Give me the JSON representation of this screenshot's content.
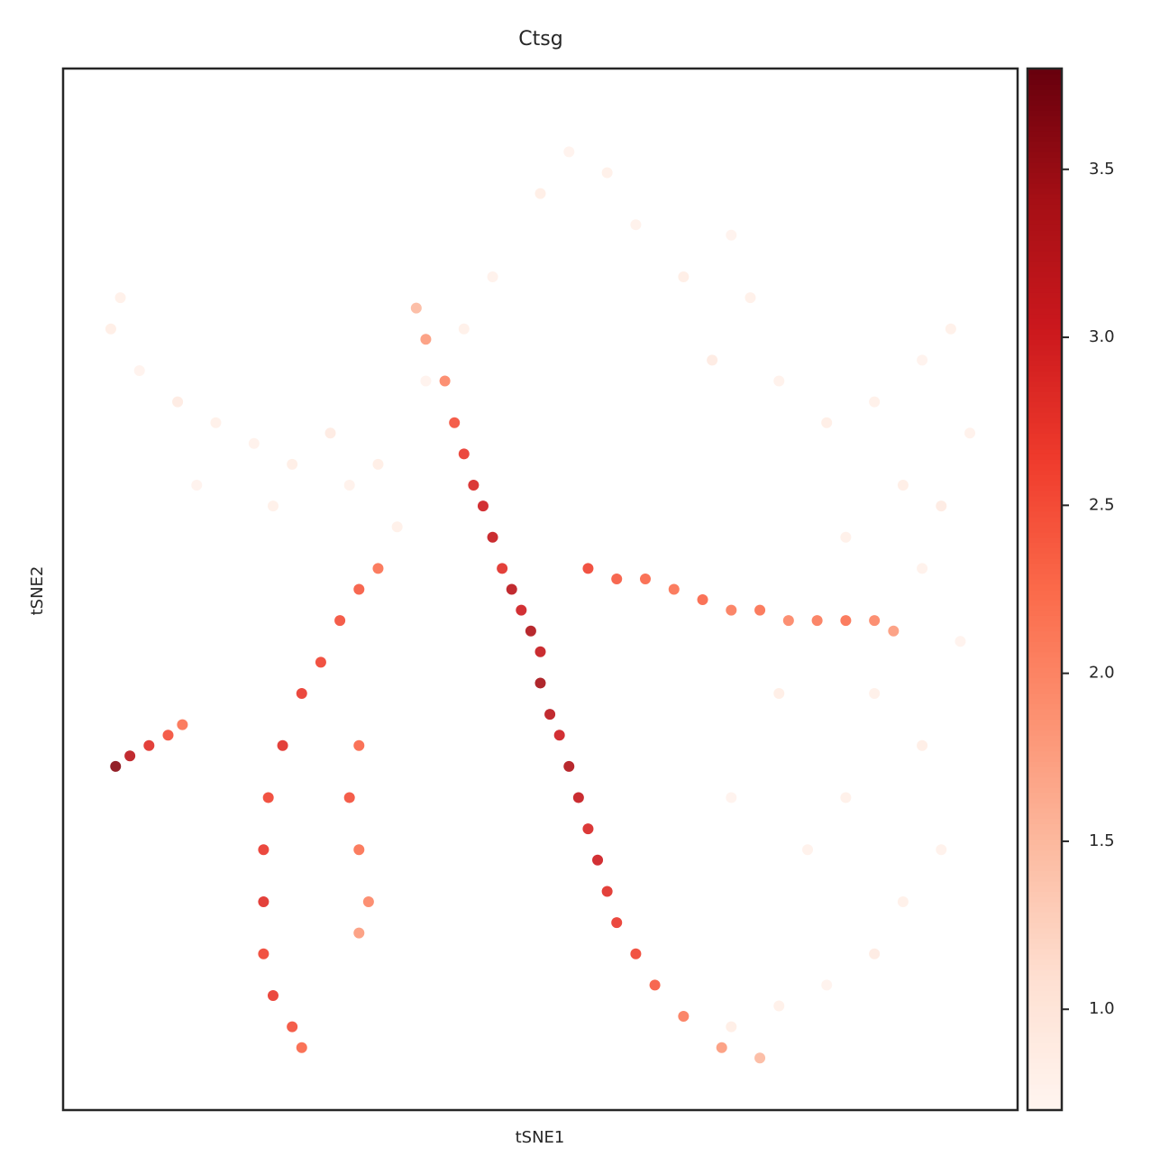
{
  "chart_data": {
    "type": "scatter",
    "title": "Ctsg",
    "xlabel": "tSNE1",
    "ylabel": "tSNE2",
    "xlim": [
      0,
      100
    ],
    "ylim": [
      0,
      100
    ],
    "x": [
      6,
      5,
      8,
      12,
      16,
      20,
      24,
      14,
      22,
      28,
      30,
      33,
      35,
      38,
      42,
      45,
      50,
      53,
      57,
      60,
      65,
      70,
      72,
      68,
      75,
      80,
      85,
      90,
      93,
      95,
      92,
      88,
      82,
      90,
      94,
      85,
      90,
      92,
      88,
      85,
      80,
      75,
      70,
      78,
      82,
      70,
      75,
      37,
      38,
      40,
      41,
      42,
      43,
      44,
      45,
      46,
      47,
      48,
      49,
      50,
      50,
      51,
      52,
      53,
      54,
      55,
      56,
      57,
      58,
      60,
      62,
      65,
      69,
      73,
      55,
      58,
      61,
      64,
      67,
      70,
      73,
      76,
      79,
      82,
      85,
      87,
      33,
      31,
      29,
      27,
      25,
      23,
      21.5,
      21,
      21,
      21,
      22,
      24,
      25,
      31,
      30,
      31,
      32,
      31,
      5.5,
      7,
      9,
      11,
      12.5
    ],
    "y": [
      78,
      75,
      71,
      68,
      66,
      64,
      62,
      60,
      58,
      65,
      60,
      62,
      56,
      70,
      75,
      80,
      88,
      92,
      90,
      85,
      80,
      84,
      78,
      72,
      70,
      66,
      68,
      72,
      75,
      65,
      58,
      60,
      55,
      52,
      45,
      40,
      35,
      25,
      20,
      15,
      12,
      10,
      8,
      25,
      30,
      30,
      40,
      77,
      74,
      70,
      66,
      63,
      60,
      58,
      55,
      52,
      50,
      48,
      46,
      44,
      41,
      38,
      36,
      33,
      30,
      27,
      24,
      21,
      18,
      15,
      12,
      9,
      6,
      5,
      52,
      51,
      51,
      50,
      49,
      48,
      48,
      47,
      47,
      47,
      47,
      46,
      52,
      50,
      47,
      43,
      40,
      35,
      30,
      25,
      20,
      15,
      11,
      8,
      6,
      35,
      30,
      25,
      20,
      17,
      33,
      34,
      35,
      36,
      37
    ],
    "values": [
      0.8,
      0.85,
      0.75,
      0.9,
      0.8,
      0.78,
      0.85,
      0.75,
      0.8,
      0.9,
      0.78,
      0.85,
      0.8,
      0.75,
      0.8,
      0.78,
      0.85,
      0.75,
      0.8,
      0.78,
      0.85,
      0.75,
      0.8,
      0.9,
      0.78,
      0.85,
      0.8,
      0.75,
      0.8,
      0.78,
      0.9,
      0.85,
      0.8,
      0.78,
      0.75,
      0.8,
      0.85,
      0.78,
      0.8,
      0.9,
      0.75,
      0.8,
      0.85,
      0.78,
      0.8,
      0.75,
      0.85,
      1.5,
      1.8,
      2.0,
      2.5,
      2.7,
      2.9,
      3.0,
      3.1,
      2.8,
      3.2,
      3.0,
      3.3,
      3.1,
      3.4,
      3.2,
      3.0,
      3.3,
      3.1,
      2.9,
      3.0,
      2.8,
      2.7,
      2.6,
      2.4,
      2.1,
      1.8,
      1.5,
      2.6,
      2.4,
      2.3,
      2.2,
      2.3,
      2.1,
      2.2,
      2.0,
      2.1,
      2.2,
      2.0,
      1.8,
      2.2,
      2.4,
      2.5,
      2.6,
      2.7,
      2.8,
      2.6,
      2.7,
      2.8,
      2.6,
      2.7,
      2.5,
      2.3,
      2.3,
      2.5,
      2.2,
      2.0,
      1.8,
      3.6,
      3.2,
      2.8,
      2.5,
      2.2
    ],
    "colormap": [
      "#fff5f0",
      "#fee0d2",
      "#fcbba1",
      "#fc9272",
      "#fb6a4a",
      "#ef3b2c",
      "#cb181d",
      "#a50f15",
      "#67000d"
    ],
    "clim": [
      0.7,
      3.8
    ],
    "cticks": [
      {
        "value": 1,
        "label": "1.0"
      },
      1.5,
      {
        "value": 2,
        "label": "2.0"
      },
      2.5,
      {
        "value": 3,
        "label": "3.0"
      },
      3.5
    ]
  }
}
